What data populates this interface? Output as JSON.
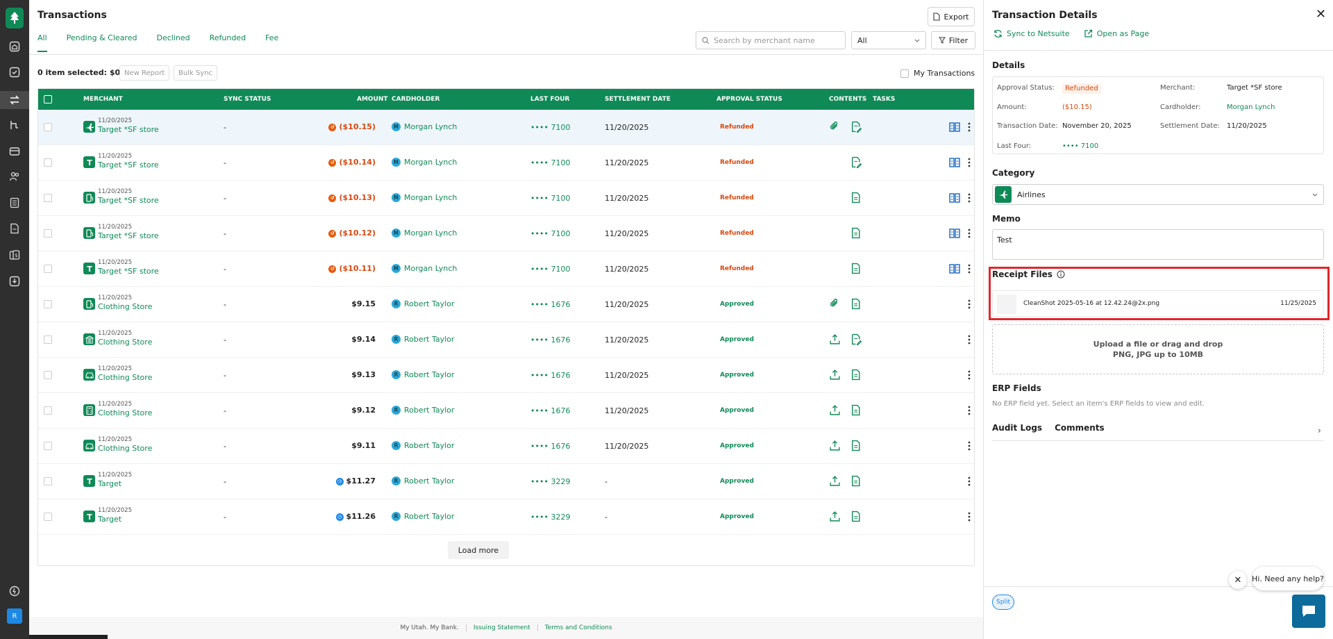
{
  "page": {
    "title": "Transactions",
    "export_label": "Export"
  },
  "tabs": [
    "All",
    "Pending & Cleared",
    "Declined",
    "Refunded",
    "Fee"
  ],
  "search": {
    "placeholder": "Search by merchant name"
  },
  "status_filter": {
    "value": "All"
  },
  "filter_label": "Filter",
  "selection": {
    "info": "0 item selected: $0.00",
    "new_report": "New Report",
    "bulk_sync": "Bulk Sync",
    "my_transactions": "My Transactions"
  },
  "columns": [
    "MERCHANT",
    "SYNC STATUS",
    "AMOUNT",
    "CARDHOLDER",
    "LAST FOUR",
    "SETTLEMENT DATE",
    "APPROVAL STATUS",
    "CONTENTS",
    "TASKS"
  ],
  "rows": [
    {
      "date": "11/20/2025",
      "merchant": "Target *SF store",
      "icon": "airplane-icon",
      "sync": "-",
      "amount": "($10.15)",
      "amount_state": "refund",
      "cardholder": "Morgan Lynch",
      "initial": "M",
      "last_four": "•••• 7100",
      "settlement": "11/20/2025",
      "status": "Refunded",
      "contents": [
        "attachment-icon",
        "receipt-edit-icon"
      ],
      "split": true
    },
    {
      "date": "11/20/2025",
      "merchant": "Target *SF store",
      "icon": "letter-t-icon",
      "sync": "-",
      "amount": "($10.14)",
      "amount_state": "refund",
      "cardholder": "Morgan Lynch",
      "initial": "M",
      "last_four": "•••• 7100",
      "settlement": "11/20/2025",
      "status": "Refunded",
      "contents": [
        "receipt-edit-icon"
      ],
      "split": true
    },
    {
      "date": "11/20/2025",
      "merchant": "Target *SF store",
      "icon": "fuel-icon",
      "sync": "-",
      "amount": "($10.13)",
      "amount_state": "refund",
      "cardholder": "Morgan Lynch",
      "initial": "M",
      "last_four": "•••• 7100",
      "settlement": "11/20/2025",
      "status": "Refunded",
      "contents": [
        "receipt-icon"
      ],
      "split": true
    },
    {
      "date": "11/20/2025",
      "merchant": "Target *SF store",
      "icon": "fuel-icon",
      "sync": "-",
      "amount": "($10.12)",
      "amount_state": "refund",
      "cardholder": "Morgan Lynch",
      "initial": "M",
      "last_four": "•••• 7100",
      "settlement": "11/20/2025",
      "status": "Refunded",
      "contents": [
        "receipt-icon"
      ],
      "split": true
    },
    {
      "date": "11/20/2025",
      "merchant": "Target *SF store",
      "icon": "letter-t-icon",
      "sync": "-",
      "amount": "($10.11)",
      "amount_state": "refund",
      "cardholder": "Morgan Lynch",
      "initial": "M",
      "last_four": "•••• 7100",
      "settlement": "11/20/2025",
      "status": "Refunded",
      "contents": [
        "receipt-icon"
      ],
      "split": true
    },
    {
      "date": "11/20/2025",
      "merchant": "Clothing Store",
      "icon": "fuel-icon",
      "sync": "-",
      "amount": "$9.15",
      "amount_state": "normal",
      "cardholder": "Robert Taylor",
      "initial": "R",
      "last_four": "•••• 1676",
      "settlement": "11/20/2025",
      "status": "Approved",
      "contents": [
        "attachment-icon",
        "receipt-icon"
      ],
      "split": false
    },
    {
      "date": "11/20/2025",
      "merchant": "Clothing Store",
      "icon": "bank-icon",
      "sync": "-",
      "amount": "$9.14",
      "amount_state": "normal",
      "cardholder": "Robert Taylor",
      "initial": "R",
      "last_four": "•••• 1676",
      "settlement": "11/20/2025",
      "status": "Approved",
      "contents": [
        "upload-icon",
        "receipt-edit-icon"
      ],
      "split": false
    },
    {
      "date": "11/20/2025",
      "merchant": "Clothing Store",
      "icon": "car-icon",
      "sync": "-",
      "amount": "$9.13",
      "amount_state": "normal",
      "cardholder": "Robert Taylor",
      "initial": "R",
      "last_four": "•••• 1676",
      "settlement": "11/20/2025",
      "status": "Approved",
      "contents": [
        "upload-icon",
        "receipt-icon"
      ],
      "split": false
    },
    {
      "date": "11/20/2025",
      "merchant": "Clothing Store",
      "icon": "calculator-icon",
      "sync": "-",
      "amount": "$9.12",
      "amount_state": "normal",
      "cardholder": "Robert Taylor",
      "initial": "R",
      "last_four": "•••• 1676",
      "settlement": "11/20/2025",
      "status": "Approved",
      "contents": [
        "upload-icon",
        "receipt-icon"
      ],
      "split": false
    },
    {
      "date": "11/20/2025",
      "merchant": "Clothing Store",
      "icon": "car-icon",
      "sync": "-",
      "amount": "$9.11",
      "amount_state": "normal",
      "cardholder": "Robert Taylor",
      "initial": "R",
      "last_four": "•••• 1676",
      "settlement": "11/20/2025",
      "status": "Approved",
      "contents": [
        "upload-icon",
        "receipt-icon"
      ],
      "split": false
    },
    {
      "date": "11/20/2025",
      "merchant": "Target",
      "icon": "letter-t-icon",
      "sync": "-",
      "amount": "$11.27",
      "amount_state": "pending",
      "cardholder": "Robert Taylor",
      "initial": "R",
      "last_four": "•••• 3229",
      "settlement": "-",
      "status": "Approved",
      "contents": [
        "upload-icon",
        "receipt-icon"
      ],
      "split": false
    },
    {
      "date": "11/20/2025",
      "merchant": "Target",
      "icon": "letter-t-icon",
      "sync": "-",
      "amount": "$11.26",
      "amount_state": "pending",
      "cardholder": "Robert Taylor",
      "initial": "R",
      "last_four": "•••• 3229",
      "settlement": "-",
      "status": "Approved",
      "contents": [
        "upload-icon",
        "receipt-icon"
      ],
      "split": false
    }
  ],
  "load_more": "Load more",
  "footer": {
    "brand": "My Utah. My Bank.",
    "links": [
      "Issuing Statement",
      "Terms and Conditions"
    ]
  },
  "sidebar": {
    "avatar": "R",
    "icons": [
      "home-icon",
      "approvals-icon",
      "transactions-icon",
      "flows-icon",
      "cards-icon",
      "people-icon",
      "reports-icon",
      "documents-icon",
      "banking-icon",
      "download-icon",
      "help-icon"
    ]
  },
  "panel": {
    "title": "Transaction Details",
    "sync_label": "Sync to Netsuite",
    "open_label": "Open as Page",
    "details_heading": "Details",
    "details": {
      "approval_status_k": "Approval Status:",
      "approval_status_v": "Refunded",
      "merchant_k": "Merchant:",
      "merchant_v": "Target *SF store",
      "amount_k": "Amount:",
      "amount_v": "($10.15)",
      "cardholder_k": "Cardholder:",
      "cardholder_v": "Morgan Lynch",
      "tdate_k": "Transaction Date:",
      "tdate_v": "November 20, 2025",
      "sdate_k": "Settlement Date:",
      "sdate_v": "11/20/2025",
      "last4_k": "Last Four:",
      "last4_v": "•••• 7100"
    },
    "category_heading": "Category",
    "category_value": "Airlines",
    "memo_heading": "Memo",
    "memo_value": "Test",
    "receipt_heading": "Receipt Files",
    "receipt_file": {
      "name": "CleanShot 2025-05-16 at 12.42.24@2x.png",
      "date": "11/25/2025"
    },
    "upload_line1": "Upload a file or drag and drop",
    "upload_line2": "PNG, JPG up to 10MB",
    "erp_heading": "ERP Fields",
    "erp_text": "No ERP field yet. Select an item's ERP fields to view and edit.",
    "audit_label": "Audit Logs",
    "comments_label": "Comments",
    "split_label": "Split"
  },
  "chat": {
    "bubble": "Hi. Need any help?"
  },
  "colors": {
    "brand": "#0f8a57",
    "refund": "#d9480f",
    "highlight": "#e3252b"
  }
}
